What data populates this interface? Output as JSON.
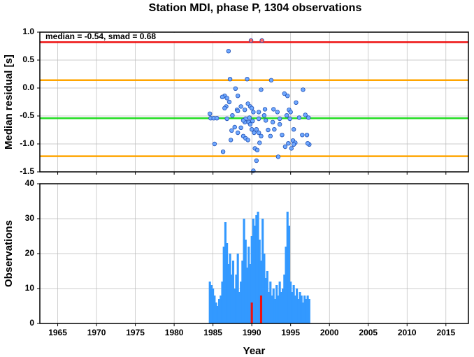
{
  "chart_data": [
    {
      "type": "scatter",
      "title": "Station MDI, phase P, 1304 observations",
      "y_label": "Median residual [s]",
      "annotation": "median = -0.54, smad = 0.68",
      "xlim": [
        1962.7,
        2017.9
      ],
      "xticks": [
        1965,
        1970,
        1975,
        1980,
        1985,
        1990,
        1995,
        2000,
        2005,
        2010,
        2015
      ],
      "ylim": [
        -1.5,
        1.0
      ],
      "yticks": [
        {
          "value": 1,
          "label": "1.0"
        },
        0.5,
        {
          "value": 0,
          "label": "0.0"
        },
        -0.5,
        {
          "value": -1,
          "label": "-1.0"
        },
        -1.5
      ],
      "grid": true,
      "hlines": [
        {
          "value": 0.82,
          "color": "#ee1111"
        },
        {
          "value": 0.14,
          "color": "#ffa500"
        },
        {
          "value": -0.54,
          "color": "#22dd22"
        },
        {
          "value": -1.22,
          "color": "#ffa500"
        }
      ],
      "series": [
        {
          "color": "#6fa8ff",
          "x": [
            1987.0,
            1987.2,
            1989.4,
            1992.5,
            1984.6,
            1984.7,
            1985.1,
            1985.5,
            1985.2,
            1986.3,
            1990.2,
            1990.6,
            1993.4,
            1994.3,
            1994.2,
            1996.6,
            1996.9,
            1997.3,
            1997.4,
            1997.2,
            1996.5,
            1997.1,
            1986.5,
            1986.2,
            1986.8,
            1987.1,
            1986.7,
            1987.9,
            1988.2,
            1988.1,
            1988.2,
            1988.6,
            1989.1,
            1989.5,
            1989.8,
            1990.0,
            1990.2,
            1989.2,
            1989.1,
            1988.9,
            1989.7,
            1989.6,
            1990.1,
            1988.6,
            1988.2,
            1987.8,
            1987.4,
            1987.3,
            1988.9,
            1989.2,
            1989.5,
            1990.0,
            1990.3,
            1989.8,
            1990.9,
            1991.2,
            1991.7,
            1991.6,
            1990.9,
            1990.6,
            1990.9,
            1991.2,
            1991.0,
            1990.4,
            1990.7,
            1991.8,
            1992.1,
            1992.4,
            1992.7,
            1992.8,
            1993.3,
            1992.9,
            1993.6,
            1993.6,
            1993.9,
            1994.6,
            1994.8,
            1995.0,
            1994.5,
            1994.9,
            1995.3,
            1995.6,
            1995.4,
            1995.1,
            1994.7,
            1995.7,
            1996.1,
            1995.4,
            1986.5,
            1986.8,
            1987.5
          ],
          "values": [
            0.66,
            0.16,
            0.16,
            0.14,
            -0.46,
            -0.54,
            -0.54,
            -0.54,
            -1.0,
            -1.14,
            -1.48,
            -1.3,
            -1.23,
            -1.05,
            -0.1,
            -0.03,
            -0.48,
            -0.53,
            -1.01,
            -0.99,
            -0.84,
            -0.84,
            -0.14,
            -0.16,
            -0.18,
            -0.25,
            -0.33,
            -0.01,
            -0.14,
            -0.39,
            -0.41,
            -0.33,
            -0.39,
            -0.28,
            -0.33,
            -0.36,
            -0.43,
            -0.55,
            -0.61,
            -0.58,
            -0.53,
            -0.61,
            -0.59,
            -0.71,
            -0.8,
            -0.7,
            -0.76,
            -0.93,
            -0.86,
            -0.9,
            -0.93,
            -0.74,
            -0.8,
            -0.65,
            -0.43,
            -0.03,
            -0.38,
            -0.49,
            -0.55,
            -0.74,
            -0.8,
            -0.86,
            -0.98,
            -1.08,
            -1.11,
            -0.58,
            -0.75,
            -0.86,
            -0.61,
            -0.38,
            -0.43,
            -0.74,
            -0.55,
            -0.65,
            -0.84,
            -0.14,
            -0.39,
            -0.43,
            -0.49,
            -0.55,
            -0.94,
            -0.98,
            -1.01,
            -1.08,
            -0.99,
            -0.26,
            -0.53,
            -0.74,
            -0.36,
            -0.55,
            -0.49
          ]
        },
        {
          "color": "#ff6666",
          "x": [
            1989.9,
            1991.3
          ],
          "values": [
            0.85,
            0.85
          ]
        }
      ]
    },
    {
      "type": "bar",
      "y_label": "Observations",
      "x_label": "Year",
      "xlim": [
        1962.7,
        2017.9
      ],
      "xticks": [
        1965,
        1970,
        1975,
        1980,
        1985,
        1990,
        1995,
        2000,
        2005,
        2010,
        2015
      ],
      "ylim": [
        0,
        40
      ],
      "yticks": [
        0,
        10,
        20,
        30,
        40
      ],
      "grid": true,
      "x": [
        1984.6,
        1984.8,
        1985.0,
        1985.2,
        1985.4,
        1985.6,
        1985.8,
        1986.0,
        1986.2,
        1986.4,
        1986.6,
        1986.8,
        1987.0,
        1987.2,
        1987.4,
        1987.6,
        1987.8,
        1988.0,
        1988.2,
        1988.4,
        1988.6,
        1988.8,
        1989.0,
        1989.2,
        1989.4,
        1989.6,
        1989.8,
        1990.0,
        1990.2,
        1990.4,
        1990.6,
        1990.8,
        1991.0,
        1991.2,
        1991.4,
        1991.6,
        1991.8,
        1992.0,
        1992.2,
        1992.4,
        1992.6,
        1992.8,
        1993.0,
        1993.2,
        1993.4,
        1993.6,
        1993.8,
        1994.0,
        1994.2,
        1994.4,
        1994.6,
        1994.8,
        1995.0,
        1995.2,
        1995.4,
        1995.6,
        1995.8,
        1996.0,
        1996.2,
        1996.4,
        1996.6,
        1996.8,
        1997.0,
        1997.2,
        1997.4
      ],
      "series": [
        {
          "color": "#3399ff",
          "values": [
            12,
            11,
            10,
            8,
            6,
            5,
            7,
            8,
            12,
            22,
            29,
            23,
            17,
            20,
            14,
            18,
            10,
            14,
            20,
            9,
            12,
            18,
            30,
            24,
            16,
            22,
            17,
            25,
            30,
            28,
            31,
            32,
            24,
            18,
            30,
            20,
            13,
            15,
            9,
            12,
            8,
            10,
            7,
            11,
            8,
            12,
            9,
            10,
            14,
            22,
            32,
            28,
            12,
            9,
            11,
            8,
            10,
            7,
            9,
            8,
            6,
            8,
            7,
            8,
            7
          ]
        },
        {
          "color": "#ee1111",
          "values": [
            null,
            null,
            null,
            null,
            null,
            null,
            null,
            null,
            null,
            null,
            null,
            null,
            null,
            null,
            null,
            null,
            null,
            null,
            null,
            null,
            null,
            null,
            null,
            null,
            null,
            null,
            null,
            6,
            null,
            null,
            null,
            null,
            null,
            8,
            null,
            null,
            null,
            null,
            null,
            null,
            null,
            null,
            null,
            null,
            null,
            null,
            null,
            null,
            null,
            null,
            null,
            null,
            null,
            null,
            null,
            null,
            null,
            null,
            null,
            null,
            null,
            null,
            null,
            null,
            null
          ]
        }
      ]
    }
  ]
}
